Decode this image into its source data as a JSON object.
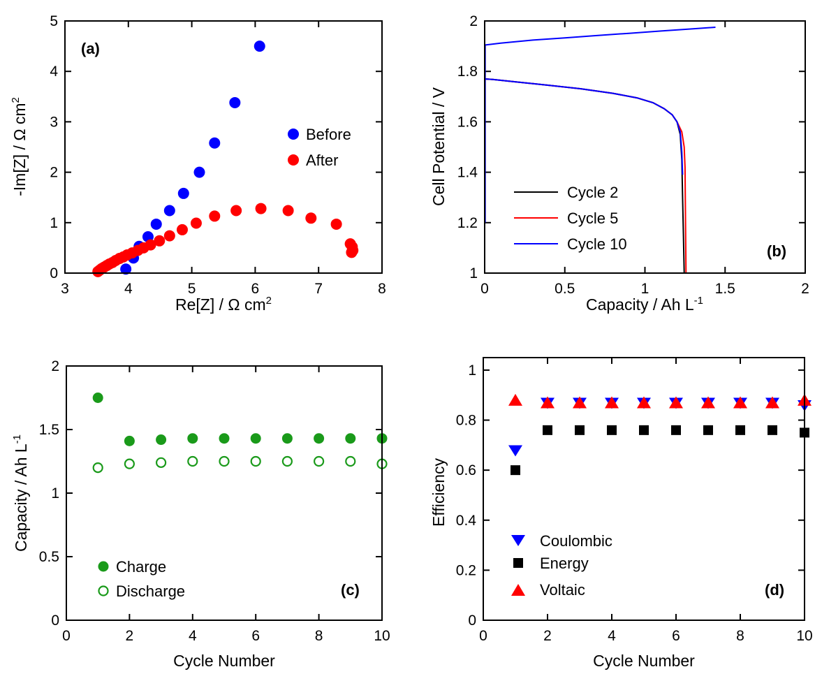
{
  "figure": {
    "panels": {
      "a": {
        "label": "(a)",
        "xlabel": "Re[Z] / Ω cm",
        "xlabel_sup": "2",
        "ylabel": "-Im[Z] / Ω cm",
        "ylabel_sup": "2",
        "legend": [
          "Before",
          "After"
        ],
        "ticks_x": [
          "3",
          "4",
          "5",
          "6",
          "7",
          "8"
        ],
        "ticks_y": [
          "0",
          "1",
          "2",
          "3",
          "4",
          "5"
        ]
      },
      "b": {
        "label": "(b)",
        "xlabel": "Capacity / Ah L",
        "xlabel_sup": "-1",
        "ylabel": "Cell Potential / V",
        "legend": [
          "Cycle 2",
          "Cycle 5",
          "Cycle 10"
        ],
        "ticks_x": [
          "0",
          "0.5",
          "1",
          "1.5",
          "2"
        ],
        "ticks_y": [
          "1",
          "1.2",
          "1.4",
          "1.6",
          "1.8",
          "2"
        ]
      },
      "c": {
        "label": "(c)",
        "xlabel": "Cycle Number",
        "ylabel": "Capacity / Ah L",
        "ylabel_sup": "-1",
        "legend": [
          "Charge",
          "Discharge"
        ],
        "ticks_x": [
          "0",
          "2",
          "4",
          "6",
          "8",
          "10"
        ],
        "ticks_y": [
          "0",
          "0.5",
          "1",
          "1.5",
          "2"
        ]
      },
      "d": {
        "label": "(d)",
        "xlabel": "Cycle Number",
        "ylabel": "Efficiency",
        "legend": [
          "Coulombic",
          "Energy",
          "Voltaic"
        ],
        "ticks_x": [
          "0",
          "2",
          "4",
          "6",
          "8",
          "10"
        ],
        "ticks_y": [
          "0",
          "0.2",
          "0.4",
          "0.6",
          "0.8",
          "1"
        ]
      }
    }
  },
  "colors": {
    "blue": "#0000ff",
    "red": "#ff0000",
    "green": "#1a9a1a",
    "black": "#000000"
  },
  "chart_data": [
    {
      "panel": "a",
      "type": "scatter",
      "xlabel": "Re[Z] / Ω cm2",
      "ylabel": "-Im[Z] / Ω cm2",
      "xlim": [
        3,
        8
      ],
      "ylim": [
        0,
        5
      ],
      "legend_position": "center-right",
      "series": [
        {
          "name": "Before",
          "color": "#0000ff",
          "x": [
            3.96,
            4.08,
            4.17,
            4.31,
            4.44,
            4.65,
            4.87,
            5.12,
            5.36,
            5.68,
            6.07
          ],
          "y": [
            0.08,
            0.3,
            0.53,
            0.72,
            0.97,
            1.24,
            1.58,
            2.0,
            2.58,
            3.38,
            4.5
          ]
        },
        {
          "name": "After",
          "color": "#ff0000",
          "x": [
            3.52,
            3.55,
            3.58,
            3.62,
            3.66,
            3.7,
            3.75,
            3.8,
            3.86,
            3.92,
            3.98,
            4.06,
            4.15,
            4.24,
            4.35,
            4.49,
            4.65,
            4.85,
            5.07,
            5.36,
            5.7,
            6.09,
            6.52,
            6.88,
            7.28,
            7.5,
            7.53,
            7.54,
            7.52
          ],
          "y": [
            0.03,
            0.06,
            0.09,
            0.12,
            0.15,
            0.18,
            0.21,
            0.25,
            0.29,
            0.32,
            0.36,
            0.4,
            0.45,
            0.5,
            0.56,
            0.64,
            0.74,
            0.86,
            0.99,
            1.13,
            1.24,
            1.28,
            1.24,
            1.09,
            0.97,
            0.58,
            0.52,
            0.45,
            0.41
          ]
        }
      ]
    },
    {
      "panel": "b",
      "type": "line",
      "xlabel": "Capacity / Ah L-1",
      "ylabel": "Cell Potential / V",
      "xlim": [
        0,
        2
      ],
      "ylim": [
        1,
        2
      ],
      "legend_position": "bottom-left",
      "series": [
        {
          "name": "Cycle 2",
          "color": "#000000",
          "x": [
            0.0,
            0.05,
            0.2,
            0.4,
            0.6,
            0.8,
            0.95,
            1.05,
            1.12,
            1.17,
            1.2,
            1.22,
            1.23,
            1.235,
            1.24,
            1.245
          ],
          "y": [
            1.77,
            1.768,
            1.758,
            1.745,
            1.731,
            1.713,
            1.695,
            1.676,
            1.652,
            1.628,
            1.6,
            1.55,
            1.45,
            1.3,
            1.15,
            1.0
          ]
        },
        {
          "name": "Cycle 5",
          "color": "#ff0000",
          "x": [
            0.0,
            0.05,
            0.2,
            0.4,
            0.6,
            0.8,
            0.95,
            1.05,
            1.12,
            1.17,
            1.2,
            1.23,
            1.245,
            1.25,
            1.253,
            1.256
          ],
          "y": [
            1.77,
            1.768,
            1.758,
            1.745,
            1.731,
            1.713,
            1.695,
            1.676,
            1.652,
            1.628,
            1.6,
            1.56,
            1.5,
            1.42,
            1.2,
            1.0
          ]
        },
        {
          "name": "Cycle 10",
          "color": "#0000ff",
          "x": [
            0.0,
            0.01,
            0.1,
            0.3,
            0.5,
            0.7,
            0.9,
            1.1,
            1.3,
            1.44
          ],
          "y": [
            1.905,
            1.905,
            1.912,
            1.924,
            1.933,
            1.942,
            1.951,
            1.96,
            1.969,
            1.975
          ]
        },
        {
          "name": "Cycle 10 discharge",
          "color": "#0000ff",
          "x": [
            0.0,
            0.05,
            0.2,
            0.4,
            0.6,
            0.8,
            0.95,
            1.05,
            1.12,
            1.17,
            1.2,
            1.22,
            1.23,
            1.235
          ],
          "y": [
            1.77,
            1.768,
            1.758,
            1.745,
            1.731,
            1.713,
            1.695,
            1.676,
            1.652,
            1.628,
            1.6,
            1.56,
            1.48,
            1.39
          ]
        }
      ]
    },
    {
      "panel": "c",
      "type": "scatter",
      "xlabel": "Cycle Number",
      "ylabel": "Capacity / Ah L-1",
      "xlim": [
        0,
        10
      ],
      "ylim": [
        0,
        2
      ],
      "legend_position": "bottom-left",
      "series": [
        {
          "name": "Charge",
          "color": "#1a9a1a",
          "marker": "filled-circle",
          "x": [
            1,
            2,
            3,
            4,
            5,
            6,
            7,
            8,
            9,
            10
          ],
          "y": [
            1.75,
            1.41,
            1.42,
            1.43,
            1.43,
            1.43,
            1.43,
            1.43,
            1.43,
            1.43
          ]
        },
        {
          "name": "Discharge",
          "color": "#1a9a1a",
          "marker": "open-circle",
          "x": [
            1,
            2,
            3,
            4,
            5,
            6,
            7,
            8,
            9,
            10
          ],
          "y": [
            1.2,
            1.23,
            1.24,
            1.25,
            1.25,
            1.25,
            1.25,
            1.25,
            1.25,
            1.23
          ]
        }
      ]
    },
    {
      "panel": "d",
      "type": "scatter",
      "xlabel": "Cycle Number",
      "ylabel": "Efficiency",
      "xlim": [
        0,
        10
      ],
      "ylim": [
        0,
        1.05
      ],
      "legend_position": "bottom-left",
      "series": [
        {
          "name": "Coulombic",
          "color": "#0000ff",
          "marker": "down-triangle",
          "x": [
            1,
            2,
            3,
            4,
            5,
            6,
            7,
            8,
            9,
            10
          ],
          "y": [
            0.68,
            0.87,
            0.87,
            0.87,
            0.87,
            0.87,
            0.87,
            0.87,
            0.87,
            0.86
          ]
        },
        {
          "name": "Energy",
          "color": "#000000",
          "marker": "square",
          "x": [
            1,
            2,
            3,
            4,
            5,
            6,
            7,
            8,
            9,
            10
          ],
          "y": [
            0.6,
            0.76,
            0.76,
            0.76,
            0.76,
            0.76,
            0.76,
            0.76,
            0.76,
            0.75
          ]
        },
        {
          "name": "Voltaic",
          "color": "#ff0000",
          "marker": "up-triangle",
          "x": [
            1,
            2,
            3,
            4,
            5,
            6,
            7,
            8,
            9,
            10
          ],
          "y": [
            0.88,
            0.87,
            0.87,
            0.87,
            0.87,
            0.87,
            0.87,
            0.87,
            0.87,
            0.88
          ]
        }
      ]
    }
  ]
}
